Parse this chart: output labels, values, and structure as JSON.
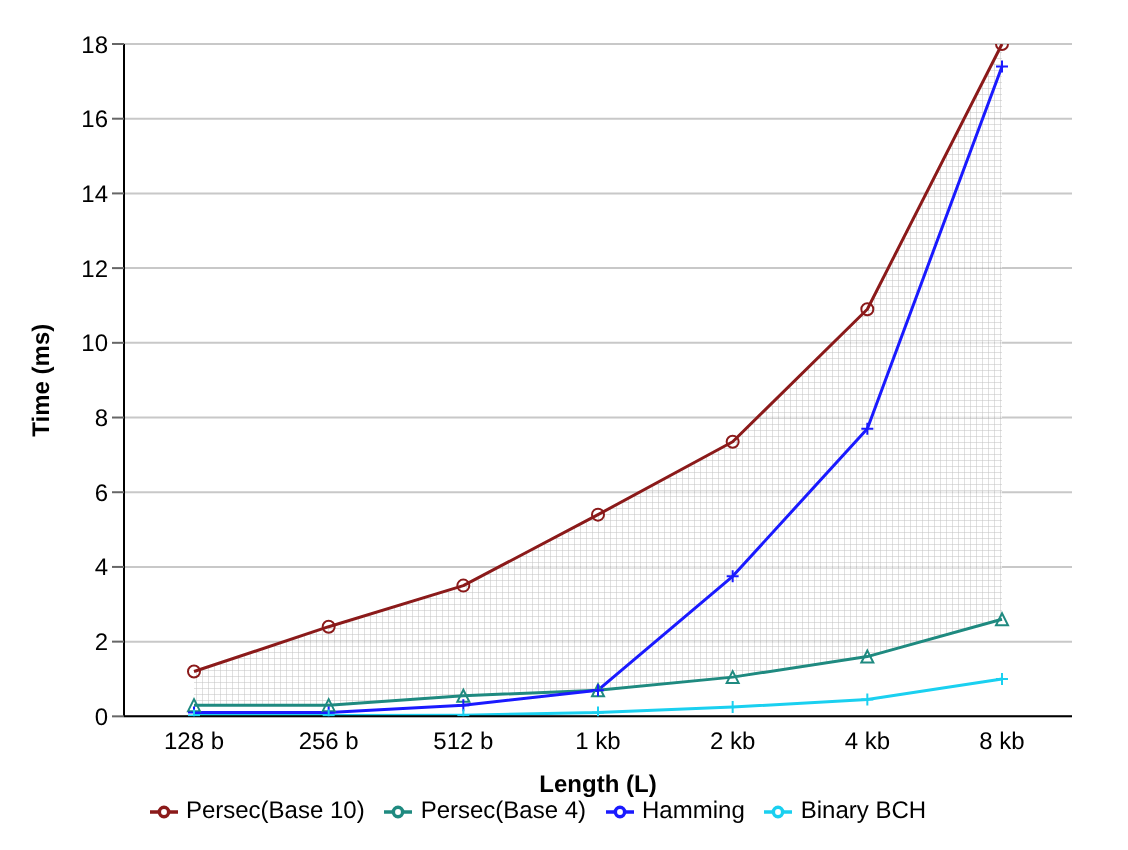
{
  "chart_data": {
    "type": "line",
    "xlabel": "Length (L)",
    "ylabel": "Time (ms)",
    "categories": [
      "128 b",
      "256 b",
      "512 b",
      "1 kb",
      "2 kb",
      "4 kb",
      "8 kb"
    ],
    "series": [
      {
        "name": "Persec(Base 10)",
        "color": "#8b1a1a",
        "marker": "circle",
        "values": [
          1.2,
          2.4,
          3.5,
          5.4,
          7.35,
          10.9,
          18.0
        ],
        "lower": [
          0.3,
          0.3,
          0.55,
          0.7,
          1.05,
          1.6,
          2.6
        ],
        "upper": [
          1.2,
          2.4,
          3.5,
          5.4,
          7.35,
          10.9,
          18.0
        ]
      },
      {
        "name": "Persec(Base 4)",
        "color": "#1f8a80",
        "marker": "triangle",
        "values": [
          0.3,
          0.3,
          0.55,
          0.7,
          1.05,
          1.6,
          2.6
        ]
      },
      {
        "name": "Hamming",
        "color": "#1a1aff",
        "marker": "cross",
        "values": [
          0.1,
          0.1,
          0.3,
          0.7,
          3.75,
          7.7,
          17.4
        ]
      },
      {
        "name": "Binary BCH",
        "color": "#1ad0f0",
        "marker": "cross",
        "values": [
          0.02,
          0.02,
          0.03,
          0.1,
          0.25,
          0.45,
          1.0
        ]
      }
    ],
    "ylim": [
      0,
      18
    ],
    "yticks": [
      0,
      2,
      4,
      6,
      8,
      10,
      12,
      14,
      16,
      18
    ],
    "grid": "y",
    "legend": "bottom"
  }
}
